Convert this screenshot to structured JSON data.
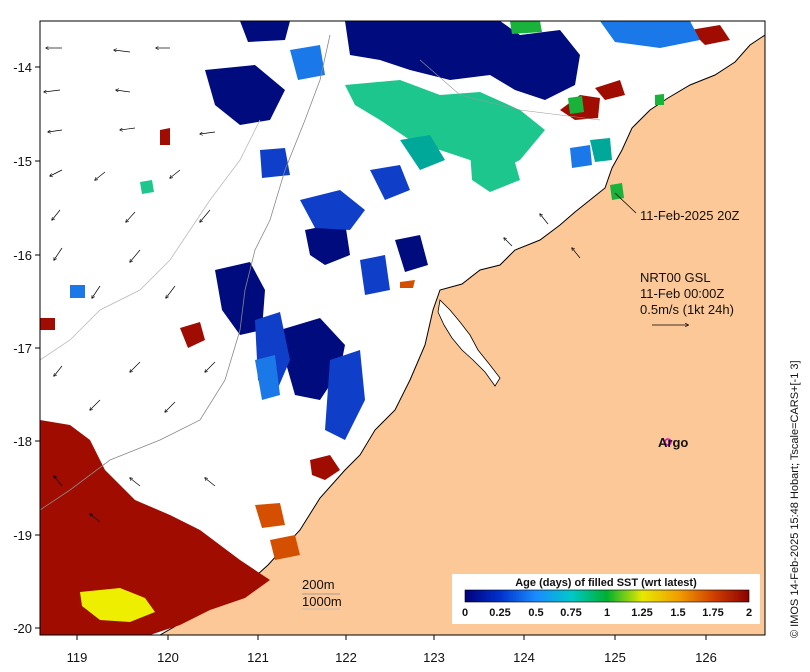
{
  "map": {
    "x_ticks": [
      "119",
      "120",
      "121",
      "122",
      "123",
      "124",
      "125",
      "126"
    ],
    "y_ticks": [
      "-14",
      "-15",
      "-16",
      "-17",
      "-18",
      "-19",
      "-20"
    ],
    "colors": {
      "land": "#fdc897",
      "ocean_fill": "#ffffff",
      "old": "#a00d00",
      "orange": "#d45000",
      "blue_deep": "#000b7e",
      "blue_mid": "#0f3fc8",
      "blue_light": "#1a78e8",
      "teal": "#1dc68c",
      "teal_dark": "#00a89a",
      "yellow": "#eeee00",
      "green": "#19b23b"
    }
  },
  "annotations": {
    "timestamp": "11-Feb-2025 20Z",
    "current_source": "NRT00 GSL",
    "current_time": "11-Feb 00:00Z",
    "scale_text": "0.5m/s (1kt 24h)",
    "argo_label": "Argo",
    "isobath_200": "200m",
    "isobath_1000": "1000m"
  },
  "colorbar": {
    "title": "Age (days) of filled SST (wrt latest)",
    "labels": [
      "0",
      "0.25",
      "0.5",
      "0.75",
      "1",
      "1.25",
      "1.5",
      "1.75",
      "2"
    ],
    "stops": [
      "#00007a",
      "#0033cc",
      "#1a8cff",
      "#00c8c8",
      "#00b030",
      "#e8e800",
      "#f0a000",
      "#d04000",
      "#8c0000"
    ]
  },
  "credit": "© IMOS 14-Feb-2025 15:48 Hobart; Tscale=CARS+[-1 3]"
}
